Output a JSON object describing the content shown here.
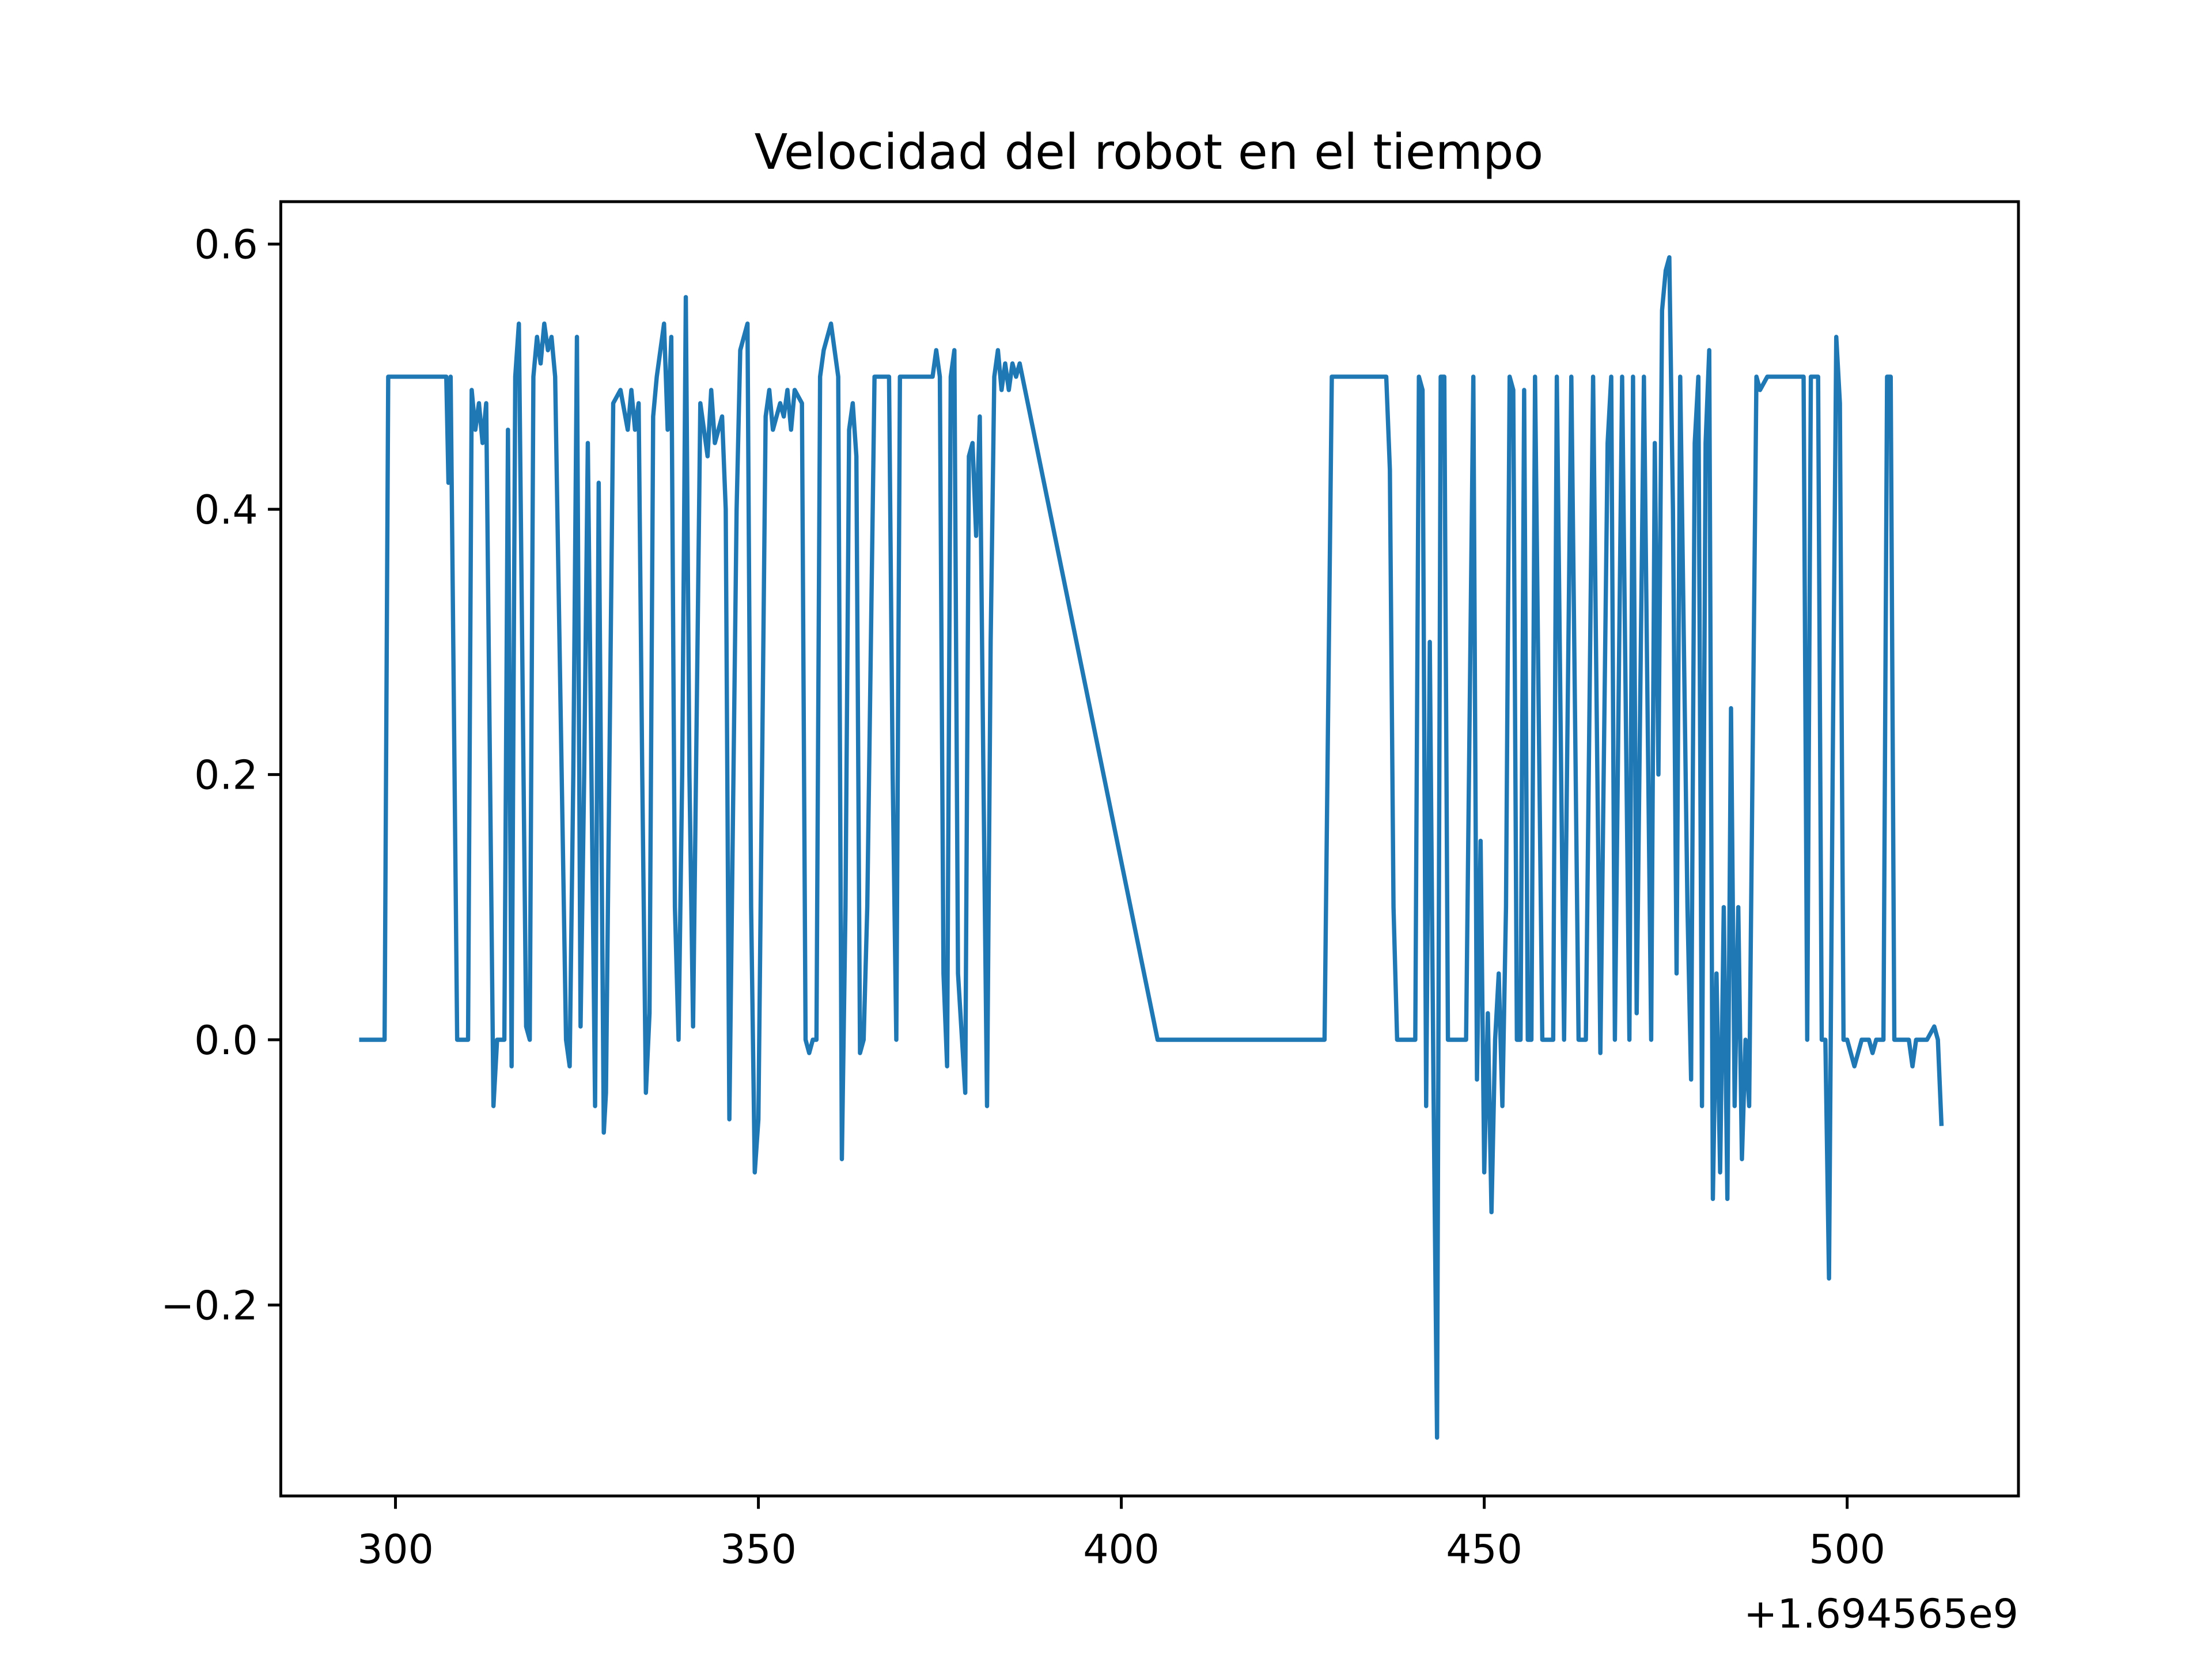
{
  "chart_data": {
    "type": "line",
    "title": "Velocidad del robot en el tiempo",
    "x_offset_label": "+1.694565e9",
    "xlim": [
      284.2,
      523.6
    ],
    "ylim": [
      -0.344,
      0.632
    ],
    "xticks": [
      300,
      350,
      400,
      450,
      500
    ],
    "yticks": [
      {
        "value": -0.2,
        "label": "−0.2"
      },
      {
        "value": 0,
        "label": "0.0"
      },
      0.2,
      0.4,
      0.6
    ],
    "series": [
      {
        "color": "#1f77b4",
        "x": [
          295,
          298.5,
          299,
          307,
          307.3,
          307.6,
          308.5,
          310,
          310.5,
          311,
          311.5,
          312,
          312.5,
          313.5,
          314,
          315,
          315.5,
          316,
          316.5,
          317,
          318,
          318.5,
          319,
          319.5,
          320,
          320.5,
          321,
          321.5,
          322,
          323.5,
          324,
          324.5,
          325,
          325.5,
          326,
          326.5,
          327,
          327.5,
          328,
          328.7,
          329,
          330,
          331,
          332,
          332.5,
          333,
          333.5,
          334,
          334.5,
          335,
          335.5,
          336,
          337,
          337.5,
          338,
          338.5,
          339,
          339.5,
          340,
          340.5,
          341,
          342,
          343,
          343.5,
          344,
          345,
          345.5,
          346,
          347,
          347.5,
          348,
          348.5,
          349,
          349.5,
          350,
          350.5,
          351,
          351.5,
          352,
          353,
          353.5,
          354,
          354.5,
          355,
          356,
          356.5,
          357,
          357.5,
          358,
          358.5,
          359,
          359.5,
          360,
          361,
          361.5,
          362,
          362.5,
          363,
          363.5,
          364,
          364.5,
          365,
          366,
          368,
          368.5,
          369,
          369.5,
          373,
          374,
          374.5,
          375,
          375.5,
          376,
          376.5,
          377,
          377.5,
          378.5,
          379,
          379.5,
          380,
          380.5,
          381,
          381.5,
          382,
          382.5,
          383,
          383.5,
          384,
          384.5,
          385,
          385.5,
          386,
          405,
          428,
          429,
          436.5,
          437,
          437.5,
          438,
          440.5,
          441,
          441.5,
          442,
          442.5,
          443,
          443.5,
          444,
          444.5,
          445,
          447.5,
          448.5,
          449,
          449.5,
          450,
          450.5,
          451,
          451.5,
          452,
          452.5,
          453,
          453.5,
          454,
          454.5,
          455,
          455.5,
          456,
          456.5,
          457,
          458,
          459.5,
          460,
          461,
          462,
          463,
          464,
          465,
          466,
          467,
          467.5,
          468,
          469,
          470,
          470.5,
          471,
          472,
          473,
          473.5,
          474,
          474.5,
          475,
          475.5,
          476,
          476.5,
          477,
          478,
          478.5,
          479,
          479.5,
          480,
          480.5,
          481,
          481.5,
          482,
          482.5,
          483,
          483.5,
          484,
          484.5,
          485,
          485.5,
          486,
          486.5,
          487.5,
          488,
          489,
          494,
          494.5,
          495,
          496,
          496.5,
          497,
          497.5,
          498,
          498.5,
          499,
          499.5,
          500,
          501,
          502,
          503,
          503.5,
          504,
          505,
          505.5,
          506,
          506.5,
          507,
          508.5,
          509,
          509.5,
          511,
          512,
          512.5,
          513
        ],
        "values": [
          0,
          0,
          0.5,
          0.5,
          0.42,
          0.5,
          0,
          0,
          0.49,
          0.46,
          0.48,
          0.45,
          0.48,
          -0.05,
          0,
          0,
          0.46,
          -0.02,
          0.5,
          0.54,
          0.01,
          0,
          0.5,
          0.53,
          0.51,
          0.54,
          0.52,
          0.53,
          0.5,
          0,
          -0.02,
          0.2,
          0.53,
          0.01,
          0.2,
          0.45,
          0.2,
          -0.05,
          0.42,
          -0.07,
          -0.04,
          0.48,
          0.49,
          0.46,
          0.49,
          0.46,
          0.48,
          0.2,
          -0.04,
          0.02,
          0.47,
          0.5,
          0.54,
          0.46,
          0.53,
          0.1,
          0,
          0.2,
          0.56,
          0.2,
          0.01,
          0.48,
          0.44,
          0.49,
          0.45,
          0.47,
          0.4,
          -0.06,
          0.4,
          0.52,
          0.53,
          0.54,
          0.1,
          -0.1,
          -0.06,
          0.2,
          0.47,
          0.49,
          0.46,
          0.48,
          0.47,
          0.49,
          0.46,
          0.49,
          0.48,
          0,
          -0.01,
          0,
          0,
          0.5,
          0.52,
          0.53,
          0.54,
          0.5,
          -0.09,
          0.1,
          0.46,
          0.48,
          0.44,
          -0.01,
          0,
          0.1,
          0.5,
          0.5,
          0.2,
          0,
          0.5,
          0.5,
          0.5,
          0.52,
          0.5,
          0.05,
          -0.02,
          0.5,
          0.52,
          0.05,
          -0.04,
          0.44,
          0.45,
          0.38,
          0.47,
          0.2,
          -0.05,
          0.3,
          0.5,
          0.52,
          0.49,
          0.51,
          0.49,
          0.51,
          0.5,
          0.51,
          0,
          0,
          0.5,
          0.5,
          0.43,
          0.1,
          0,
          0,
          0.5,
          0.49,
          -0.05,
          0.3,
          -0.03,
          -0.3,
          0.5,
          0.5,
          0,
          0,
          0.5,
          -0.03,
          0.15,
          -0.1,
          0.02,
          -0.13,
          0,
          0.05,
          -0.05,
          0.1,
          0.5,
          0.49,
          0,
          0,
          0.49,
          0,
          0,
          0.5,
          0,
          0,
          0.5,
          0,
          0.5,
          0,
          0,
          0.5,
          -0.01,
          0.45,
          0.5,
          0,
          0.5,
          0,
          0.5,
          0.02,
          0.5,
          0,
          0.45,
          0.2,
          0.55,
          0.58,
          0.59,
          0.4,
          0.05,
          0.5,
          0.1,
          -0.03,
          0.45,
          0.5,
          -0.05,
          0.45,
          0.52,
          -0.12,
          0.05,
          -0.1,
          0.1,
          -0.12,
          0.25,
          -0.05,
          0.1,
          -0.09,
          0,
          -0.05,
          0.5,
          0.49,
          0.5,
          0.5,
          0,
          0.5,
          0.5,
          0,
          0,
          -0.18,
          0.2,
          0.53,
          0.48,
          0,
          0,
          -0.02,
          0,
          0,
          -0.01,
          0,
          0,
          0.5,
          0.5,
          0,
          0,
          0,
          -0.02,
          0,
          0,
          0.01,
          0,
          -0.065
        ]
      }
    ]
  }
}
